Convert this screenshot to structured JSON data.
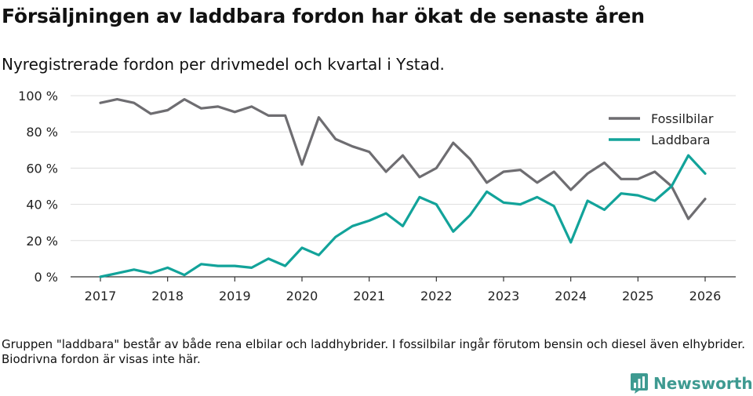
{
  "title": "Försäljningen av laddbara fordon har ökat de senaste åren",
  "subtitle": "Nyregistrerade fordon per drivmedel och kvartal i Ystad.",
  "footnote": "Gruppen \"laddbara\" består av både rena elbilar och laddhybrider. I fossilbilar ingår förutom bensin och diesel även elhybrider. Biodrivna fordon är visas inte här.",
  "brand": "Newsworthy",
  "colors": {
    "fossil": "#6e6d71",
    "laddbara": "#12a39a",
    "brand": "#3e9a91",
    "grid": "#dddddd"
  },
  "chart_data": {
    "type": "line",
    "x": [
      2017.0,
      2017.25,
      2017.5,
      2017.75,
      2018.0,
      2018.25,
      2018.5,
      2018.75,
      2019.0,
      2019.25,
      2019.5,
      2019.75,
      2020.0,
      2020.25,
      2020.5,
      2020.75,
      2021.0,
      2021.25,
      2021.5,
      2021.75,
      2022.0,
      2022.25,
      2022.5,
      2022.75,
      2023.0,
      2023.25,
      2023.5,
      2023.75,
      2024.0,
      2024.25,
      2024.5,
      2024.75,
      2025.0,
      2025.25,
      2025.5,
      2025.75,
      2026.0
    ],
    "series": [
      {
        "name": "Fossilbilar",
        "color": "#6e6d71",
        "values": [
          96,
          98,
          96,
          90,
          92,
          98,
          93,
          94,
          91,
          94,
          89,
          89,
          62,
          88,
          76,
          72,
          69,
          58,
          67,
          55,
          60,
          74,
          65,
          52,
          58,
          59,
          52,
          58,
          48,
          57,
          63,
          54,
          54,
          58,
          50,
          32,
          43
        ]
      },
      {
        "name": "Laddbara",
        "color": "#12a39a",
        "values": [
          0,
          2,
          4,
          2,
          5,
          1,
          7,
          6,
          6,
          5,
          10,
          6,
          16,
          12,
          22,
          28,
          31,
          35,
          28,
          44,
          40,
          25,
          34,
          47,
          41,
          40,
          44,
          39,
          19,
          42,
          37,
          46,
          45,
          42,
          50,
          67,
          57
        ]
      }
    ],
    "ylim": [
      0,
      100
    ],
    "yticks": [
      0,
      20,
      40,
      60,
      80,
      100
    ],
    "ytick_labels": [
      "0 %",
      "20 %",
      "40 %",
      "60 %",
      "80 %",
      "100 %"
    ],
    "xticks": [
      2017,
      2018,
      2019,
      2020,
      2021,
      2022,
      2023,
      2024,
      2025,
      2026
    ],
    "xtick_labels": [
      "2017",
      "2018",
      "2019",
      "2020",
      "2021",
      "2022",
      "2023",
      "2024",
      "2025",
      "2026"
    ],
    "legend": [
      "Fossilbilar",
      "Laddbara"
    ],
    "legend_position": "top-right",
    "grid": true
  }
}
